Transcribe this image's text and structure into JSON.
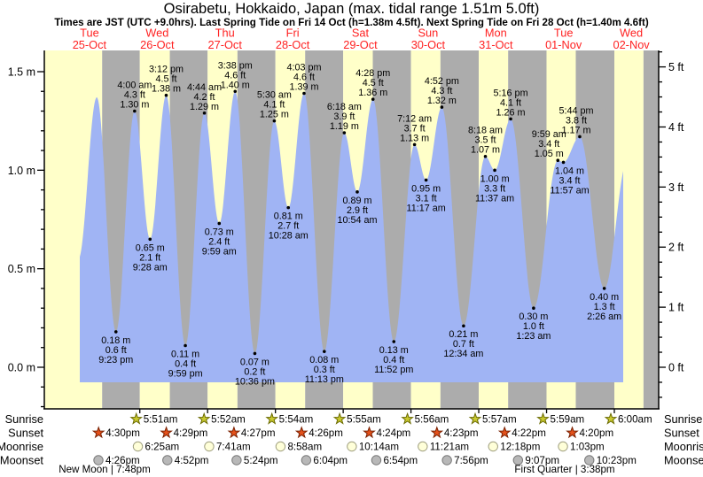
{
  "header": {
    "title": "Osirabetu, Hokkaido, Japan (max. tidal range 1.51m 5.0ft)",
    "subtitle": "Times are JST (UTC +9.0hrs). Last Spring Tide on Fri 14 Oct (h=1.38m 4.5ft). Next Spring Tide on Fri 28 Oct (h=1.40m 4.6ft)"
  },
  "chart_data": {
    "type": "area",
    "title": "Tide height over time",
    "unit_left": "m",
    "unit_right": "ft",
    "left_axis_ticks": [
      "0.0 m",
      "0.5 m",
      "1.0 m",
      "1.5 m"
    ],
    "right_axis_ticks": [
      "0 ft",
      "1 ft",
      "2 ft",
      "3 ft",
      "4 ft",
      "5 ft"
    ],
    "ylim_m": [
      -0.2,
      1.6
    ],
    "days": [
      {
        "name": "Tue",
        "date": "25-Oct"
      },
      {
        "name": "Wed",
        "date": "26-Oct"
      },
      {
        "name": "Thu",
        "date": "27-Oct"
      },
      {
        "name": "Fri",
        "date": "28-Oct"
      },
      {
        "name": "Sat",
        "date": "29-Oct"
      },
      {
        "name": "Sun",
        "date": "30-Oct"
      },
      {
        "name": "Mon",
        "date": "31-Oct"
      },
      {
        "name": "Tue",
        "date": "01-Nov"
      },
      {
        "name": "Wed",
        "date": "02-Nov"
      }
    ],
    "tide_events": [
      {
        "day": -1,
        "time": "9:23 pm",
        "height_m": "0.18",
        "height_ft": "0.6",
        "type": "low"
      },
      {
        "day": 0,
        "time": "4:00 am",
        "height_m": "1.30",
        "height_ft": "4.3",
        "type": "high"
      },
      {
        "day": 0,
        "time": "9:28 am",
        "height_m": "0.65",
        "height_ft": "2.1",
        "type": "low"
      },
      {
        "day": 0,
        "time": "3:12 pm",
        "height_m": "1.38",
        "height_ft": "4.5",
        "type": "high"
      },
      {
        "day": 0,
        "time": "9:59 pm",
        "height_m": "0.11",
        "height_ft": "0.4",
        "type": "low"
      },
      {
        "day": 1,
        "time": "4:44 am",
        "height_m": "1.29",
        "height_ft": "4.2",
        "type": "high"
      },
      {
        "day": 1,
        "time": "9:59 am",
        "height_m": "0.73",
        "height_ft": "2.4",
        "type": "low"
      },
      {
        "day": 1,
        "time": "3:38 pm",
        "height_m": "1.40",
        "height_ft": "4.6",
        "type": "high"
      },
      {
        "day": 1,
        "time": "10:36 pm",
        "height_m": "0.07",
        "height_ft": "0.2",
        "type": "low"
      },
      {
        "day": 2,
        "time": "5:30 am",
        "height_m": "1.25",
        "height_ft": "4.1",
        "type": "high"
      },
      {
        "day": 2,
        "time": "10:28 am",
        "height_m": "0.81",
        "height_ft": "2.7",
        "type": "low"
      },
      {
        "day": 2,
        "time": "4:03 pm",
        "height_m": "1.39",
        "height_ft": "4.6",
        "type": "high"
      },
      {
        "day": 2,
        "time": "11:13 pm",
        "height_m": "0.08",
        "height_ft": "0.3",
        "type": "low"
      },
      {
        "day": 3,
        "time": "6:18 am",
        "height_m": "1.19",
        "height_ft": "3.9",
        "type": "high"
      },
      {
        "day": 3,
        "time": "10:54 am",
        "height_m": "0.89",
        "height_ft": "2.9",
        "type": "low"
      },
      {
        "day": 3,
        "time": "4:28 pm",
        "height_m": "1.36",
        "height_ft": "4.5",
        "type": "high"
      },
      {
        "day": 3,
        "time": "11:52 pm",
        "height_m": "0.13",
        "height_ft": "0.4",
        "type": "low"
      },
      {
        "day": 4,
        "time": "7:12 am",
        "height_m": "1.13",
        "height_ft": "3.7",
        "type": "high"
      },
      {
        "day": 4,
        "time": "11:17 am",
        "height_m": "0.95",
        "height_ft": "3.1",
        "type": "low"
      },
      {
        "day": 4,
        "time": "4:52 pm",
        "height_m": "1.32",
        "height_ft": "4.3",
        "type": "high"
      },
      {
        "day": 5,
        "time": "12:34 am",
        "height_m": "0.21",
        "height_ft": "0.7",
        "type": "low"
      },
      {
        "day": 5,
        "time": "8:18 am",
        "height_m": "1.07",
        "height_ft": "3.5",
        "type": "high"
      },
      {
        "day": 5,
        "time": "11:37 am",
        "height_m": "1.00",
        "height_ft": "3.3",
        "type": "low"
      },
      {
        "day": 5,
        "time": "5:16 pm",
        "height_m": "1.26",
        "height_ft": "4.1",
        "type": "high"
      },
      {
        "day": 6,
        "time": "1:23 am",
        "height_m": "0.30",
        "height_ft": "1.0",
        "type": "low"
      },
      {
        "day": 6,
        "time": "9:59 am",
        "height_m": "1.05",
        "height_ft": "3.4",
        "type": "high"
      },
      {
        "day": 6,
        "time": "11:57 am",
        "height_m": "1.04",
        "height_ft": "3.4",
        "type": "low"
      },
      {
        "day": 6,
        "time": "5:44 pm",
        "height_m": "1.17",
        "height_ft": "3.8",
        "type": "high"
      },
      {
        "day": 7,
        "time": "2:26 am",
        "height_m": "0.40",
        "height_ft": "1.3",
        "type": "low"
      }
    ]
  },
  "astro": {
    "row_labels": [
      "Sunrise",
      "Sunset",
      "Moonrise",
      "Moonset"
    ],
    "sunrise": [
      {
        "day": 0,
        "time": "5:51am"
      },
      {
        "day": 1,
        "time": "5:52am"
      },
      {
        "day": 2,
        "time": "5:54am"
      },
      {
        "day": 3,
        "time": "5:55am"
      },
      {
        "day": 4,
        "time": "5:56am"
      },
      {
        "day": 5,
        "time": "5:57am"
      },
      {
        "day": 6,
        "time": "5:59am"
      },
      {
        "day": 7,
        "time": "6:00am"
      }
    ],
    "sunset": [
      {
        "day": -1,
        "time": "4:30pm"
      },
      {
        "day": 0,
        "time": "4:29pm"
      },
      {
        "day": 1,
        "time": "4:27pm"
      },
      {
        "day": 2,
        "time": "4:26pm"
      },
      {
        "day": 3,
        "time": "4:24pm"
      },
      {
        "day": 4,
        "time": "4:23pm"
      },
      {
        "day": 5,
        "time": "4:22pm"
      },
      {
        "day": 6,
        "time": "4:20pm"
      }
    ],
    "moonrise": [
      {
        "day": 0,
        "time": "6:25am"
      },
      {
        "day": 1,
        "time": "7:41am"
      },
      {
        "day": 2,
        "time": "8:58am"
      },
      {
        "day": 3,
        "time": "10:14am"
      },
      {
        "day": 4,
        "time": "11:21am"
      },
      {
        "day": 5,
        "time": "12:18pm"
      },
      {
        "day": 6,
        "time": "1:03pm"
      }
    ],
    "moonset": [
      {
        "day": -1,
        "time": "4:26pm"
      },
      {
        "day": 0,
        "time": "4:52pm"
      },
      {
        "day": 1,
        "time": "5:24pm"
      },
      {
        "day": 2,
        "time": "6:04pm"
      },
      {
        "day": 3,
        "time": "6:54pm"
      },
      {
        "day": 4,
        "time": "7:56pm"
      },
      {
        "day": 5,
        "time": "9:07pm"
      },
      {
        "day": 6,
        "time": "10:23pm"
      }
    ]
  },
  "moon_phases": [
    {
      "name": "New Moon",
      "time": "7:48pm"
    },
    {
      "name": "First Quarter",
      "time": "3:38pm"
    }
  ],
  "colors": {
    "day_band": "#ffffc9",
    "night_band": "#acacac",
    "tide_fill": "#a0b4f4",
    "date_text": "#ff2222",
    "text": "#000000",
    "sunrise_icon": "#c9c930",
    "sunset_icon": "#e4511b",
    "moonrise_icon": "#ffffd9",
    "moonset_icon": "#b8b8b8"
  }
}
